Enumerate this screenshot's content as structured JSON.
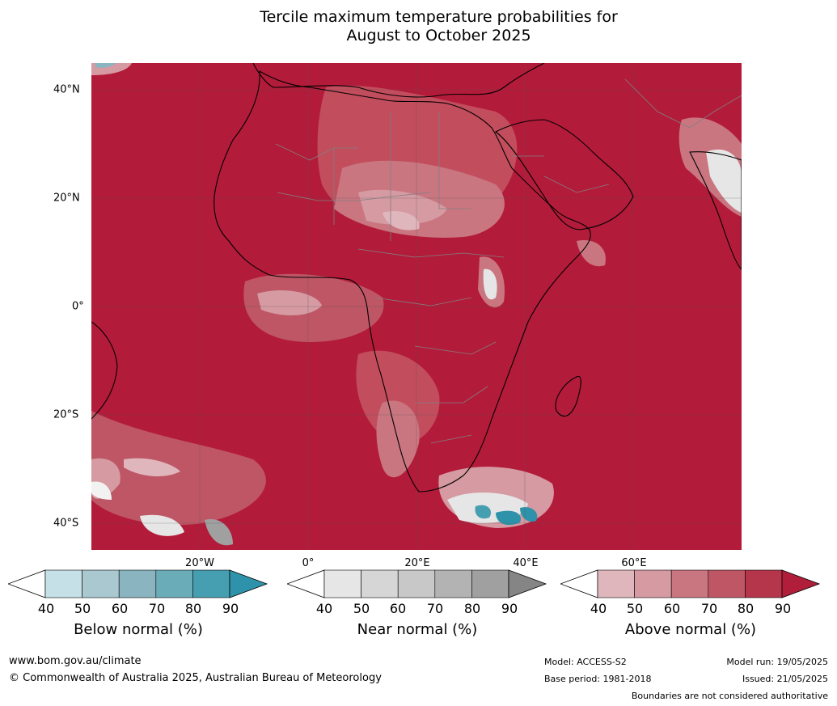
{
  "title": {
    "line1": "Tercile maximum temperature probabilities for",
    "line2": "August to October 2025"
  },
  "map": {
    "lat_labels": [
      "40°N",
      "20°N",
      "0°",
      "20°S",
      "40°S"
    ],
    "lon_labels": [
      "20°W",
      "0°",
      "20°E",
      "40°E",
      "60°E"
    ],
    "background_color": "#b31b3a",
    "land_outline_color": "#000000",
    "border_color": "#808080"
  },
  "legends": [
    {
      "name": "Below normal (%)",
      "ticks": [
        "40",
        "50",
        "60",
        "70",
        "80",
        "90"
      ],
      "colors": [
        "#ffffff",
        "#c6e0e7",
        "#a9c8cf",
        "#8ab5c0",
        "#6aacb8",
        "#469fb0",
        "#2e93aa"
      ]
    },
    {
      "name": "Near normal (%)",
      "ticks": [
        "40",
        "50",
        "60",
        "70",
        "80",
        "90"
      ],
      "colors": [
        "#ffffff",
        "#e6e6e6",
        "#d6d6d6",
        "#c8c8c8",
        "#b3b3b3",
        "#a0a0a0",
        "#858585"
      ]
    },
    {
      "name": "Above normal (%)",
      "ticks": [
        "40",
        "50",
        "60",
        "70",
        "80",
        "90"
      ],
      "colors": [
        "#ffffff",
        "#e0b6bd",
        "#d59aa2",
        "#c97680",
        "#be5665",
        "#b5354a",
        "#b01e3a"
      ]
    }
  ],
  "footer": {
    "url": "www.bom.gov.au/climate",
    "copyright": "© Commonwealth of Australia 2025, Australian Bureau of Meteorology",
    "model": "Model: ACCESS-S2",
    "base_period": "Base period: 1981-2018",
    "model_run": "Model run: 19/05/2025",
    "issued": "Issued: 21/05/2025",
    "disclaimer": "Boundaries are not considered authoritative"
  }
}
